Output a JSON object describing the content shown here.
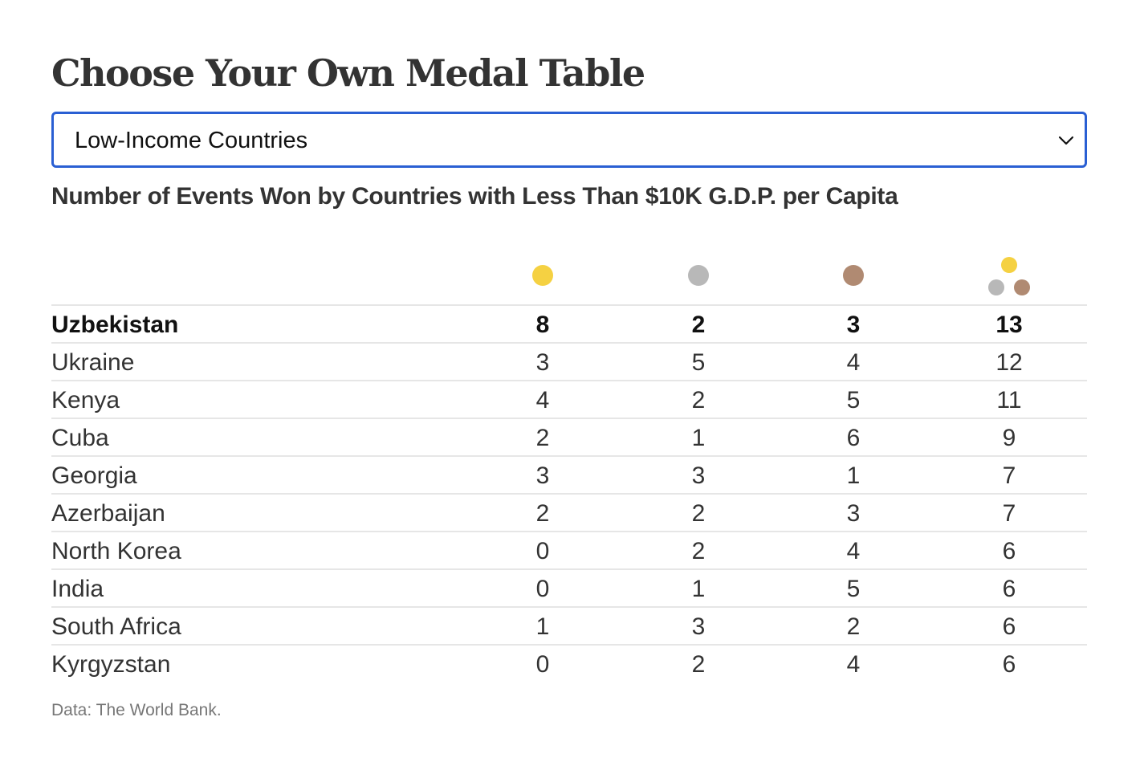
{
  "title": "Choose Your Own Medal Table",
  "selector": {
    "selected": "Low-Income Countries"
  },
  "subtitle": "Number of Events Won by Countries with Less Than $10K G.D.P. per Capita",
  "colors": {
    "gold": "#f5d142",
    "silver": "#b8b8b8",
    "bronze": "#b08a72",
    "select_border": "#2a5fd3"
  },
  "columns": [
    "country",
    "gold",
    "silver",
    "bronze",
    "total"
  ],
  "rows": [
    {
      "country": "Uzbekistan",
      "gold": "8",
      "silver": "2",
      "bronze": "3",
      "total": "13"
    },
    {
      "country": "Ukraine",
      "gold": "3",
      "silver": "5",
      "bronze": "4",
      "total": "12"
    },
    {
      "country": "Kenya",
      "gold": "4",
      "silver": "2",
      "bronze": "5",
      "total": "11"
    },
    {
      "country": "Cuba",
      "gold": "2",
      "silver": "1",
      "bronze": "6",
      "total": "9"
    },
    {
      "country": "Georgia",
      "gold": "3",
      "silver": "3",
      "bronze": "1",
      "total": "7"
    },
    {
      "country": "Azerbaijan",
      "gold": "2",
      "silver": "2",
      "bronze": "3",
      "total": "7"
    },
    {
      "country": "North Korea",
      "gold": "0",
      "silver": "2",
      "bronze": "4",
      "total": "6"
    },
    {
      "country": "India",
      "gold": "0",
      "silver": "1",
      "bronze": "5",
      "total": "6"
    },
    {
      "country": "South Africa",
      "gold": "1",
      "silver": "3",
      "bronze": "2",
      "total": "6"
    },
    {
      "country": "Kyrgyzstan",
      "gold": "0",
      "silver": "2",
      "bronze": "4",
      "total": "6"
    }
  ],
  "source": "Data: The World Bank."
}
